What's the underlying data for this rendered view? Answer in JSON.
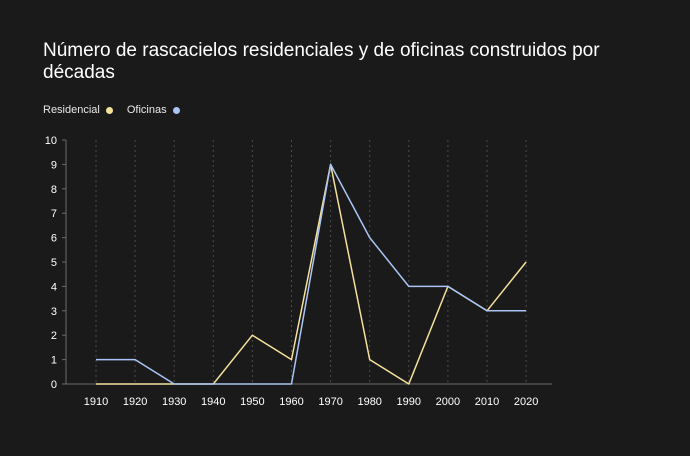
{
  "chart_data": {
    "type": "line",
    "title": "Número de rascacielos residenciales y de oficinas construidos por décadas",
    "xlabel": "",
    "ylabel": "",
    "x": [
      "1910",
      "1920",
      "1930",
      "1940",
      "1950",
      "1960",
      "1970",
      "1980",
      "1990",
      "2000",
      "2010",
      "2020"
    ],
    "ylim": [
      0,
      10
    ],
    "yticks": [
      "0",
      "1",
      "2",
      "3",
      "4",
      "5",
      "6",
      "7",
      "8",
      "9",
      "10"
    ],
    "grid": "vertical dashed",
    "legend_position": "top-left",
    "series": [
      {
        "name": "Residencial",
        "color": "#f5e29a",
        "values": [
          0,
          0,
          0,
          0,
          2,
          1,
          9,
          1,
          0,
          4,
          3,
          5
        ]
      },
      {
        "name": "Oficinas",
        "color": "#a9c4f5",
        "values": [
          1,
          1,
          0,
          0,
          0,
          0,
          9,
          6,
          4,
          4,
          3,
          3
        ]
      }
    ]
  }
}
